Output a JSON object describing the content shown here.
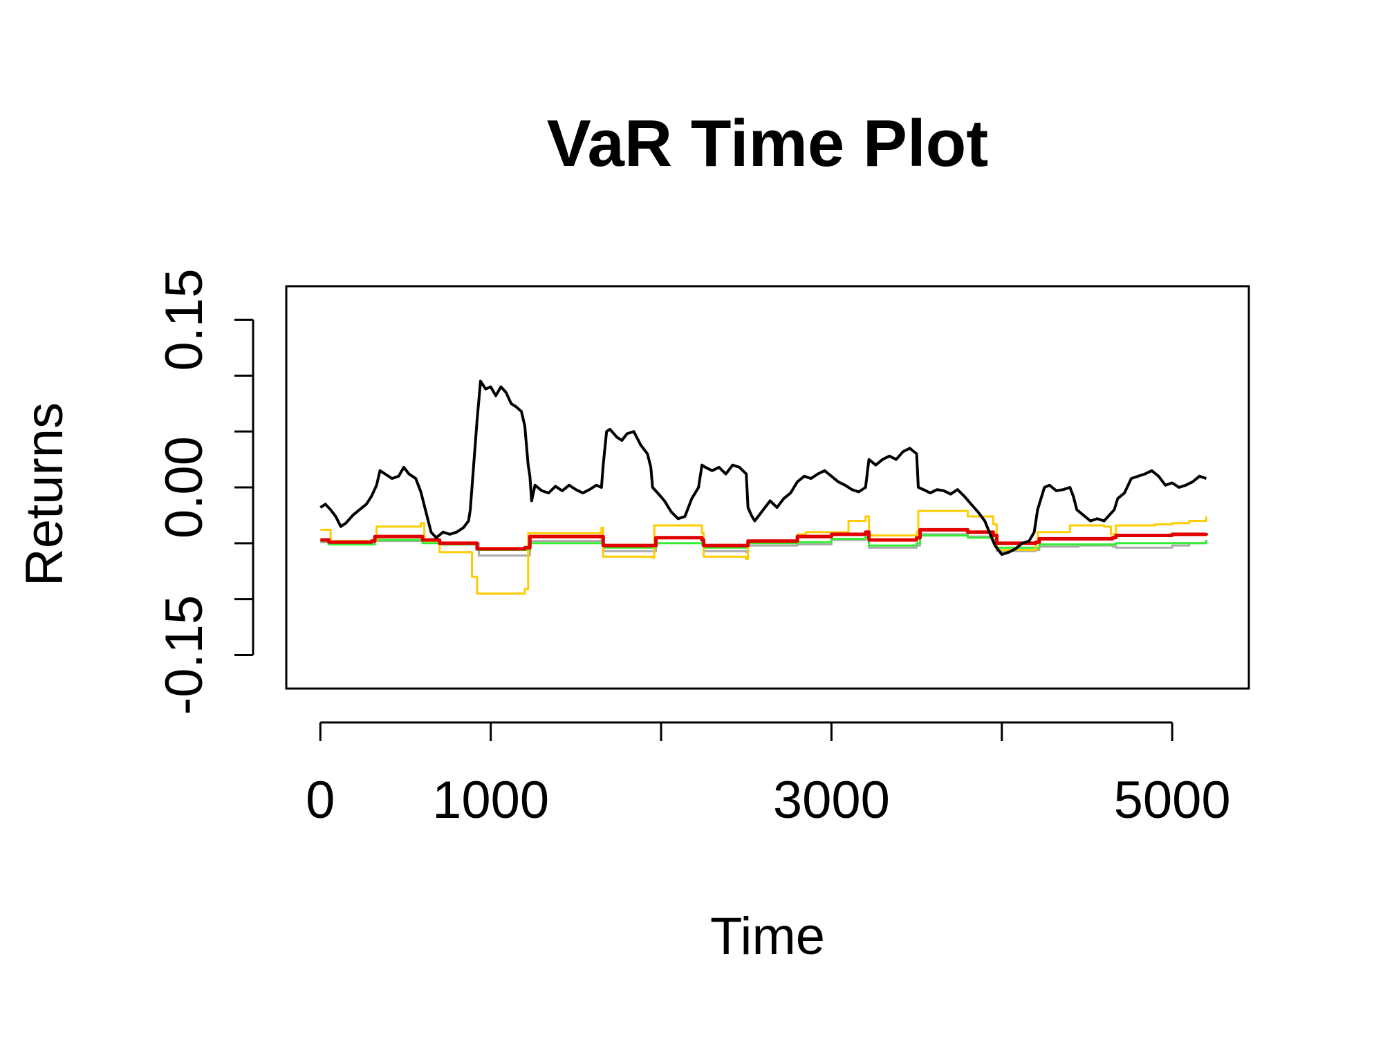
{
  "chart_data": {
    "type": "line",
    "title": "VaR Time Plot",
    "xlabel": "Time",
    "ylabel": "Returns",
    "xlim": [
      -200,
      5450
    ],
    "ylim": [
      -0.18,
      0.18
    ],
    "x_ticks": [
      0,
      1000,
      2000,
      3000,
      4000,
      5000
    ],
    "x_tick_labels": [
      "0",
      "1000",
      "",
      "3000",
      "",
      "5000"
    ],
    "y_ticks": [
      -0.15,
      -0.1,
      -0.05,
      0,
      0.05,
      0.1,
      0.15
    ],
    "y_tick_labels": [
      "-0.15",
      "",
      "",
      "0.00",
      "",
      "",
      "0.15"
    ],
    "grid": false,
    "legend": "none",
    "series": [
      {
        "color": "#aaaaaa",
        "width": 3,
        "step": true,
        "points": [
          [
            0,
            -0.049
          ],
          [
            300,
            -0.048
          ],
          [
            550,
            -0.048
          ],
          [
            600,
            -0.048
          ],
          [
            700,
            -0.05
          ],
          [
            900,
            -0.05
          ],
          [
            930,
            -0.061
          ],
          [
            1200,
            -0.061
          ],
          [
            1230,
            -0.048
          ],
          [
            1650,
            -0.047
          ],
          [
            1660,
            -0.057
          ],
          [
            1950,
            -0.057
          ],
          [
            1970,
            -0.045
          ],
          [
            2240,
            -0.048
          ],
          [
            2250,
            -0.057
          ],
          [
            2500,
            -0.058
          ],
          [
            2510,
            -0.052
          ],
          [
            2800,
            -0.051
          ],
          [
            3000,
            -0.047
          ],
          [
            3200,
            -0.045
          ],
          [
            3220,
            -0.054
          ],
          [
            3500,
            -0.052
          ],
          [
            3520,
            -0.042
          ],
          [
            3800,
            -0.044
          ],
          [
            3950,
            -0.047
          ],
          [
            3970,
            -0.057
          ],
          [
            4200,
            -0.056
          ],
          [
            4220,
            -0.053
          ],
          [
            4450,
            -0.052
          ],
          [
            4650,
            -0.053
          ],
          [
            4670,
            -0.054
          ],
          [
            5000,
            -0.052
          ],
          [
            5100,
            -0.05
          ],
          [
            5200,
            -0.047
          ]
        ]
      },
      {
        "color": "#33ee33",
        "width": 3,
        "step": true,
        "points": [
          [
            0,
            -0.048
          ],
          [
            50,
            -0.051
          ],
          [
            300,
            -0.051
          ],
          [
            320,
            -0.047
          ],
          [
            550,
            -0.047
          ],
          [
            600,
            -0.05
          ],
          [
            700,
            -0.051
          ],
          [
            900,
            -0.051
          ],
          [
            920,
            -0.056
          ],
          [
            1200,
            -0.056
          ],
          [
            1230,
            -0.05
          ],
          [
            1650,
            -0.05
          ],
          [
            1660,
            -0.054
          ],
          [
            1950,
            -0.054
          ],
          [
            1970,
            -0.05
          ],
          [
            2240,
            -0.051
          ],
          [
            2250,
            -0.054
          ],
          [
            2500,
            -0.054
          ],
          [
            2510,
            -0.05
          ],
          [
            2800,
            -0.049
          ],
          [
            3000,
            -0.046
          ],
          [
            3200,
            -0.044
          ],
          [
            3220,
            -0.052
          ],
          [
            3500,
            -0.05
          ],
          [
            3520,
            -0.043
          ],
          [
            3800,
            -0.045
          ],
          [
            3950,
            -0.048
          ],
          [
            3970,
            -0.054
          ],
          [
            4200,
            -0.054
          ],
          [
            4220,
            -0.051
          ],
          [
            4650,
            -0.051
          ],
          [
            4670,
            -0.05
          ],
          [
            5200,
            -0.047
          ]
        ]
      },
      {
        "color": "#ffcc00",
        "width": 3,
        "step": true,
        "points": [
          [
            0,
            -0.038
          ],
          [
            60,
            -0.048
          ],
          [
            320,
            -0.048
          ],
          [
            330,
            -0.035
          ],
          [
            590,
            -0.032
          ],
          [
            610,
            -0.048
          ],
          [
            700,
            -0.058
          ],
          [
            880,
            -0.058
          ],
          [
            890,
            -0.08
          ],
          [
            920,
            -0.095
          ],
          [
            1200,
            -0.091
          ],
          [
            1220,
            -0.041
          ],
          [
            1650,
            -0.036
          ],
          [
            1660,
            -0.062
          ],
          [
            1950,
            -0.063
          ],
          [
            1960,
            -0.034
          ],
          [
            2240,
            -0.041
          ],
          [
            2250,
            -0.062
          ],
          [
            2500,
            -0.064
          ],
          [
            2510,
            -0.048
          ],
          [
            2800,
            -0.042
          ],
          [
            2850,
            -0.04
          ],
          [
            3100,
            -0.03
          ],
          [
            3200,
            -0.026
          ],
          [
            3220,
            -0.043
          ],
          [
            3500,
            -0.04
          ],
          [
            3510,
            -0.021
          ],
          [
            3800,
            -0.026
          ],
          [
            3950,
            -0.033
          ],
          [
            3970,
            -0.056
          ],
          [
            4200,
            -0.05
          ],
          [
            4210,
            -0.04
          ],
          [
            4400,
            -0.034
          ],
          [
            4600,
            -0.035
          ],
          [
            4640,
            -0.042
          ],
          [
            4660,
            -0.042
          ],
          [
            4670,
            -0.034
          ],
          [
            4900,
            -0.033
          ],
          [
            5000,
            -0.032
          ],
          [
            5100,
            -0.03
          ],
          [
            5200,
            -0.026
          ]
        ]
      },
      {
        "color": "#e00000",
        "width": 5,
        "step": true,
        "points": [
          [
            0,
            -0.047
          ],
          [
            50,
            -0.049
          ],
          [
            300,
            -0.048
          ],
          [
            320,
            -0.044
          ],
          [
            550,
            -0.044
          ],
          [
            600,
            -0.047
          ],
          [
            700,
            -0.05
          ],
          [
            900,
            -0.05
          ],
          [
            920,
            -0.055
          ],
          [
            1200,
            -0.054
          ],
          [
            1230,
            -0.044
          ],
          [
            1650,
            -0.044
          ],
          [
            1660,
            -0.052
          ],
          [
            1950,
            -0.052
          ],
          [
            1970,
            -0.045
          ],
          [
            2240,
            -0.047
          ],
          [
            2250,
            -0.052
          ],
          [
            2500,
            -0.052
          ],
          [
            2510,
            -0.048
          ],
          [
            2800,
            -0.044
          ],
          [
            3000,
            -0.042
          ],
          [
            3200,
            -0.04
          ],
          [
            3220,
            -0.047
          ],
          [
            3500,
            -0.045
          ],
          [
            3520,
            -0.038
          ],
          [
            3800,
            -0.04
          ],
          [
            3950,
            -0.043
          ],
          [
            3970,
            -0.05
          ],
          [
            4200,
            -0.049
          ],
          [
            4220,
            -0.046
          ],
          [
            4650,
            -0.045
          ],
          [
            4670,
            -0.043
          ],
          [
            4900,
            -0.043
          ],
          [
            5000,
            -0.042
          ],
          [
            5200,
            -0.041
          ]
        ]
      },
      {
        "color": "#000000",
        "width": 4,
        "step": false,
        "points": [
          [
            0,
            -0.018
          ],
          [
            30,
            -0.015
          ],
          [
            60,
            -0.02
          ],
          [
            90,
            -0.026
          ],
          [
            120,
            -0.035
          ],
          [
            150,
            -0.032
          ],
          [
            190,
            -0.025
          ],
          [
            230,
            -0.02
          ],
          [
            270,
            -0.015
          ],
          [
            300,
            -0.008
          ],
          [
            330,
            0.002
          ],
          [
            350,
            0.015
          ],
          [
            380,
            0.012
          ],
          [
            420,
            0.008
          ],
          [
            460,
            0.01
          ],
          [
            490,
            0.018
          ],
          [
            520,
            0.012
          ],
          [
            560,
            0.008
          ],
          [
            590,
            -0.004
          ],
          [
            620,
            -0.022
          ],
          [
            650,
            -0.04
          ],
          [
            680,
            -0.045
          ],
          [
            720,
            -0.04
          ],
          [
            760,
            -0.042
          ],
          [
            800,
            -0.04
          ],
          [
            840,
            -0.036
          ],
          [
            870,
            -0.03
          ],
          [
            880,
            -0.02
          ],
          [
            900,
            0.02
          ],
          [
            920,
            0.06
          ],
          [
            940,
            0.095
          ],
          [
            970,
            0.088
          ],
          [
            1000,
            0.09
          ],
          [
            1030,
            0.082
          ],
          [
            1060,
            0.09
          ],
          [
            1090,
            0.085
          ],
          [
            1120,
            0.075
          ],
          [
            1150,
            0.072
          ],
          [
            1180,
            0.068
          ],
          [
            1200,
            0.055
          ],
          [
            1220,
            0.02
          ],
          [
            1230,
            0.01
          ],
          [
            1240,
            -0.012
          ],
          [
            1260,
            0.002
          ],
          [
            1300,
            -0.003
          ],
          [
            1340,
            -0.005
          ],
          [
            1380,
            0.001
          ],
          [
            1420,
            -0.003
          ],
          [
            1460,
            0.002
          ],
          [
            1500,
            -0.002
          ],
          [
            1540,
            -0.005
          ],
          [
            1580,
            -0.002
          ],
          [
            1620,
            0.002
          ],
          [
            1650,
            0.0
          ],
          [
            1660,
            0.02
          ],
          [
            1680,
            0.05
          ],
          [
            1700,
            0.052
          ],
          [
            1740,
            0.045
          ],
          [
            1770,
            0.042
          ],
          [
            1800,
            0.048
          ],
          [
            1840,
            0.05
          ],
          [
            1880,
            0.038
          ],
          [
            1920,
            0.03
          ],
          [
            1940,
            0.018
          ],
          [
            1950,
            0.0
          ],
          [
            1980,
            -0.005
          ],
          [
            2020,
            -0.012
          ],
          [
            2060,
            -0.022
          ],
          [
            2100,
            -0.028
          ],
          [
            2140,
            -0.026
          ],
          [
            2180,
            -0.01
          ],
          [
            2220,
            0.0
          ],
          [
            2240,
            0.02
          ],
          [
            2260,
            0.018
          ],
          [
            2300,
            0.015
          ],
          [
            2340,
            0.018
          ],
          [
            2380,
            0.012
          ],
          [
            2420,
            0.02
          ],
          [
            2460,
            0.018
          ],
          [
            2500,
            0.012
          ],
          [
            2510,
            -0.018
          ],
          [
            2530,
            -0.025
          ],
          [
            2550,
            -0.03
          ],
          [
            2600,
            -0.02
          ],
          [
            2640,
            -0.012
          ],
          [
            2680,
            -0.018
          ],
          [
            2720,
            -0.01
          ],
          [
            2760,
            -0.005
          ],
          [
            2800,
            0.005
          ],
          [
            2840,
            0.01
          ],
          [
            2880,
            0.008
          ],
          [
            2920,
            0.012
          ],
          [
            2960,
            0.015
          ],
          [
            3000,
            0.01
          ],
          [
            3040,
            0.005
          ],
          [
            3080,
            0.002
          ],
          [
            3120,
            -0.002
          ],
          [
            3160,
            -0.004
          ],
          [
            3200,
            0.0
          ],
          [
            3220,
            0.025
          ],
          [
            3260,
            0.02
          ],
          [
            3300,
            0.025
          ],
          [
            3340,
            0.028
          ],
          [
            3380,
            0.025
          ],
          [
            3420,
            0.032
          ],
          [
            3460,
            0.035
          ],
          [
            3500,
            0.03
          ],
          [
            3510,
            0.0
          ],
          [
            3540,
            -0.002
          ],
          [
            3580,
            -0.005
          ],
          [
            3620,
            -0.002
          ],
          [
            3660,
            -0.003
          ],
          [
            3700,
            -0.006
          ],
          [
            3740,
            -0.002
          ],
          [
            3780,
            -0.008
          ],
          [
            3820,
            -0.015
          ],
          [
            3860,
            -0.022
          ],
          [
            3900,
            -0.03
          ],
          [
            3940,
            -0.045
          ],
          [
            3960,
            -0.052
          ],
          [
            4000,
            -0.06
          ],
          [
            4040,
            -0.058
          ],
          [
            4080,
            -0.055
          ],
          [
            4120,
            -0.05
          ],
          [
            4160,
            -0.048
          ],
          [
            4190,
            -0.04
          ],
          [
            4210,
            -0.02
          ],
          [
            4230,
            -0.01
          ],
          [
            4250,
            0.0
          ],
          [
            4280,
            0.002
          ],
          [
            4320,
            -0.003
          ],
          [
            4360,
            -0.002
          ],
          [
            4400,
            0.0
          ],
          [
            4420,
            -0.008
          ],
          [
            4440,
            -0.02
          ],
          [
            4480,
            -0.025
          ],
          [
            4520,
            -0.03
          ],
          [
            4560,
            -0.028
          ],
          [
            4600,
            -0.03
          ],
          [
            4630,
            -0.025
          ],
          [
            4660,
            -0.02
          ],
          [
            4680,
            -0.01
          ],
          [
            4720,
            -0.005
          ],
          [
            4760,
            0.008
          ],
          [
            4800,
            0.01
          ],
          [
            4840,
            0.012
          ],
          [
            4880,
            0.015
          ],
          [
            4920,
            0.01
          ],
          [
            4960,
            0.002
          ],
          [
            5000,
            0.004
          ],
          [
            5040,
            0.0
          ],
          [
            5080,
            0.002
          ],
          [
            5120,
            0.005
          ],
          [
            5160,
            0.01
          ],
          [
            5200,
            0.008
          ]
        ]
      }
    ]
  }
}
